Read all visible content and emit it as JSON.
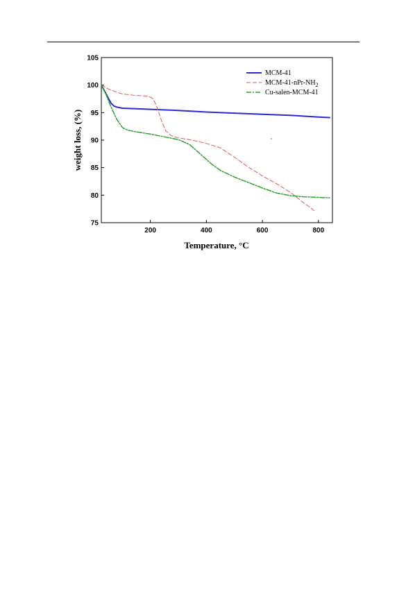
{
  "chart_data": {
    "type": "line",
    "xlabel": "Temperature, °C",
    "ylabel": "weight loss, (%)",
    "xlim": [
      25,
      850
    ],
    "ylim": [
      75,
      105
    ],
    "xticks": [
      200,
      400,
      600,
      800
    ],
    "yticks": [
      75,
      80,
      85,
      90,
      95,
      100,
      105
    ],
    "grid": false,
    "legend_position": "top-right",
    "series": [
      {
        "name": "MCM-41",
        "color": "#2a2ad6",
        "style": "solid",
        "x": [
          25,
          40,
          50,
          60,
          70,
          80,
          100,
          150,
          200,
          300,
          400,
          500,
          600,
          700,
          800,
          840
        ],
        "y": [
          100,
          98.6,
          97.6,
          96.7,
          96.2,
          96.0,
          95.8,
          95.7,
          95.6,
          95.4,
          95.1,
          94.9,
          94.7,
          94.5,
          94.2,
          94.1
        ]
      },
      {
        "name": "MCM-41-nPr-NH2",
        "color": "#e05a5a",
        "style": "dashed",
        "x": [
          25,
          50,
          80,
          100,
          150,
          190,
          205,
          215,
          225,
          240,
          255,
          275,
          300,
          340,
          400,
          450,
          500,
          550,
          600,
          650,
          700,
          750,
          785
        ],
        "y": [
          100,
          99.3,
          98.7,
          98.4,
          98.1,
          98.0,
          97.7,
          97.0,
          95.8,
          93.5,
          91.7,
          90.8,
          90.4,
          90.1,
          89.4,
          88.6,
          86.9,
          85.1,
          83.5,
          82.1,
          80.5,
          78.5,
          77.2
        ]
      },
      {
        "name": "Cu-salen-MCM-41",
        "color": "#2da02d",
        "style": "dashdot",
        "x": [
          25,
          40,
          60,
          80,
          100,
          120,
          150,
          200,
          250,
          300,
          340,
          380,
          420,
          450,
          500,
          550,
          600,
          650,
          700,
          750,
          800,
          840
        ],
        "y": [
          100,
          98.5,
          96.0,
          93.8,
          92.3,
          91.8,
          91.5,
          91.1,
          90.6,
          90.1,
          89.2,
          87.4,
          85.6,
          84.5,
          83.3,
          82.3,
          81.3,
          80.4,
          79.9,
          79.7,
          79.6,
          79.5
        ]
      }
    ]
  },
  "legend": {
    "items": [
      {
        "label": "MCM-41"
      },
      {
        "label_main": "MCM-41-nPr-NH",
        "label_sub": "2"
      },
      {
        "label": "Cu-salen-MCM-41"
      }
    ]
  }
}
